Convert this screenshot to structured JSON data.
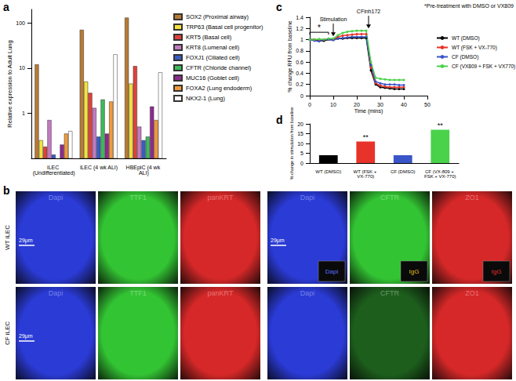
{
  "chart_data": [
    {
      "panel": "a",
      "type": "bar",
      "y_label": "Relative expression to Adult Lung",
      "categories": [
        "iLEC (Undifferentiated)",
        "iLEC (4 wk ALI)",
        "HBEpiC (4 wk ALI)"
      ],
      "series": [
        {
          "name": "SOX2 (Proximal airway)",
          "color": "#b87a35",
          "values": [
            12,
            70,
            130
          ]
        },
        {
          "name": "TRP63 (Basal cell progenitor)",
          "color": "#f2e23c",
          "values": [
            0.25,
            5,
            4.5
          ]
        },
        {
          "name": "KRT5 (Basal cell)",
          "color": "#e0413a",
          "values": [
            0.18,
            2.8,
            11
          ]
        },
        {
          "name": "KRT8 (Lumenal cell)",
          "color": "#c47ac2",
          "values": [
            0.7,
            1.3,
            0.5
          ]
        },
        {
          "name": "FOXJ1 (Ciliated cell)",
          "color": "#3a5cc4",
          "values": [
            0.12,
            0.3,
            0.25
          ]
        },
        {
          "name": "CFTR (Chloride channel)",
          "color": "#3dbb5a",
          "values": [
            null,
            2,
            0.3
          ]
        },
        {
          "name": "MUC16 (Goblet cell)",
          "color": "#8e2b8e",
          "values": [
            0.2,
            0.35,
            1.4
          ]
        },
        {
          "name": "FOXA2 (Lung endoderm)",
          "color": "#f29a3a",
          "values": [
            0.35,
            1.8,
            0.7
          ]
        },
        {
          "name": "NKX2-1 (Lung)",
          "color": "#ffffff",
          "values": [
            0.4,
            20,
            8
          ]
        }
      ],
      "ylim": [
        0.1,
        200
      ],
      "yticks": [
        1,
        10,
        100
      ],
      "log": "y",
      "legend": "right",
      "grid": false
    },
    {
      "panel": "c",
      "type": "line",
      "subtitle": "*Pre-treatment with DMSO or VX809",
      "x_label": "Time (mins)",
      "y_label": "% change RFU from baseline",
      "annotations": [
        {
          "text": "*",
          "x": [
            0,
            8
          ]
        },
        {
          "text": "Stimulation",
          "x": 10
        },
        {
          "text": "CFinh172",
          "x": 25
        }
      ],
      "x": [
        0,
        2,
        4,
        6,
        8,
        10,
        12,
        14,
        16,
        18,
        20,
        22,
        24,
        26,
        28,
        30,
        32,
        34,
        36,
        38,
        40
      ],
      "series": [
        {
          "name": "WT (DMSO)",
          "color": "#000000",
          "values": [
            1,
            1,
            0.98,
            0.98,
            1,
            1,
            1.02,
            1.02,
            1.03,
            1.03,
            1.03,
            1.03,
            1.03,
            0.45,
            0.2,
            0.15,
            0.14,
            0.13,
            0.12,
            0.12,
            0.12
          ]
        },
        {
          "name": "WT (FSK + VX-770)",
          "color": "#e8332a",
          "values": [
            1,
            1,
            0.99,
            1,
            1,
            1,
            1.05,
            1.07,
            1.08,
            1.09,
            1.1,
            1.1,
            1.1,
            0.5,
            0.22,
            0.18,
            0.16,
            0.15,
            0.15,
            0.15,
            0.15
          ]
        },
        {
          "name": "CF (DMSO)",
          "color": "#3a55c8",
          "values": [
            1,
            0.98,
            0.97,
            1,
            1,
            0.99,
            1.02,
            1.03,
            1.04,
            1.05,
            1.05,
            1.05,
            1.05,
            0.55,
            0.25,
            0.22,
            0.2,
            0.2,
            0.2,
            0.19,
            0.19
          ]
        },
        {
          "name": "CF (VX809 + FSK + VX770)",
          "color": "#49d24a",
          "values": [
            1,
            1,
            1.01,
            1,
            1.02,
            1.02,
            1.08,
            1.12,
            1.14,
            1.15,
            1.16,
            1.16,
            1.16,
            0.6,
            0.32,
            0.3,
            0.29,
            0.28,
            0.28,
            0.28,
            0.28
          ]
        }
      ],
      "xlim": [
        0,
        50
      ],
      "xticks": [
        0,
        10,
        20,
        30,
        40,
        50
      ],
      "ylim": [
        0,
        1.4
      ],
      "yticks": [
        0,
        0.2,
        0.4,
        0.6,
        0.8,
        1,
        1.2,
        1.4
      ],
      "marker": "circle",
      "legend": "right",
      "grid": false
    },
    {
      "panel": "d",
      "type": "bar",
      "y_label": "% change in stimulation from baseline",
      "categories": [
        "WT (DMSO)",
        "WT (FSK + VX-770)",
        "CF (DMSO)",
        "CF (VX-809 + FSK + VX-770)"
      ],
      "values": [
        4,
        11,
        4,
        17
      ],
      "colors": [
        "#000000",
        "#e8332a",
        "#3a55c8",
        "#49d24a"
      ],
      "annotations": [
        {
          "category": "WT (FSK + VX-770)",
          "text": "**"
        },
        {
          "category": "CF (VX-809 + FSK + VX-770)",
          "text": "**"
        }
      ],
      "ylim": [
        0,
        20
      ],
      "yticks": [
        0,
        5,
        10,
        15,
        20
      ],
      "grid": false
    }
  ],
  "images": {
    "panel": "b",
    "rows": [
      {
        "label": "WT iLEC",
        "tiles": [
          {
            "label": "Dapi",
            "color": "#2b3bd6",
            "scale_bar": "29μm"
          },
          {
            "label": "TTF1",
            "color": "#33c433"
          },
          {
            "label": "panKRT",
            "color": "#d62828"
          },
          {
            "label": "Dapi",
            "color": "#2b3bd6",
            "scale_bar": "29μm",
            "insets": [
              {
                "text": "Dapi",
                "color": "#5a6cff"
              }
            ]
          },
          {
            "label": "CFTR",
            "color": "#33c433",
            "insets": [
              {
                "text": "IgG",
                "color": "#e0c020"
              }
            ]
          },
          {
            "label": "ZO1",
            "color": "#d62828",
            "insets": [
              {
                "text": "IgG",
                "color": "#e03030"
              }
            ]
          }
        ]
      },
      {
        "label": "CF iLEC",
        "tiles": [
          {
            "label": "Dapi",
            "color": "#2b3bd6",
            "scale_bar": "29μm"
          },
          {
            "label": "TTF1",
            "color": "#33c433"
          },
          {
            "label": "panKRT",
            "color": "#d62828"
          },
          {
            "label": "Dapi",
            "color": "#2b3bd6"
          },
          {
            "label": "CFTR",
            "color": "#1d5e1d"
          },
          {
            "label": "ZO1",
            "color": "#d62828"
          }
        ]
      }
    ]
  }
}
